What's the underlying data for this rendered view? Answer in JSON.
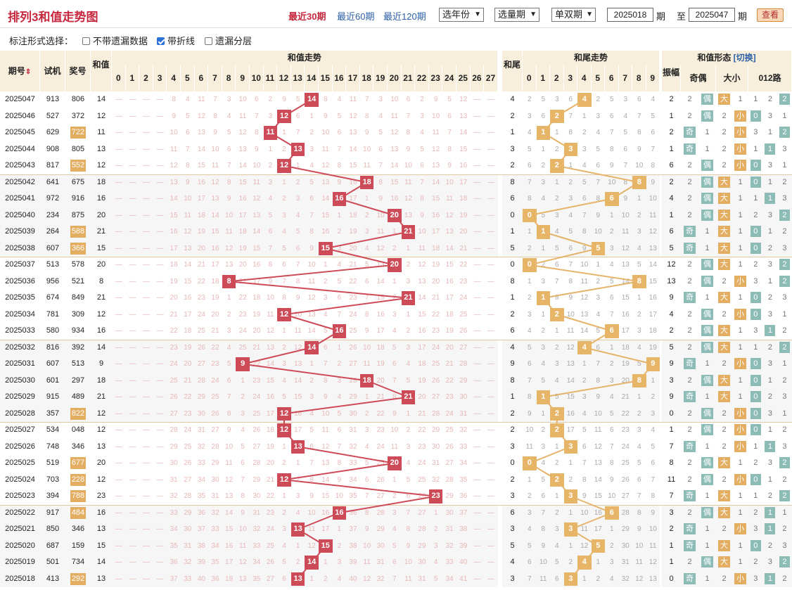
{
  "header": {
    "title": "排列3和值走势图",
    "links": [
      {
        "label": "最近30期",
        "active": true
      },
      {
        "label": "最近60期",
        "active": false
      },
      {
        "label": "最近120期",
        "active": false
      }
    ],
    "selects": [
      "选年份",
      "选量期",
      "单双期"
    ],
    "from": "2025018",
    "to": "2025047",
    "period_unit": "期",
    "to_label": "至",
    "query": "查看"
  },
  "options": {
    "label": "标注形式选择：",
    "items": [
      {
        "label": "不带遗漏数据",
        "checked": false
      },
      {
        "label": "带折线",
        "checked": true
      },
      {
        "label": "遗漏分层",
        "checked": false
      }
    ]
  },
  "columns": {
    "qihao": "期号",
    "sj": "试机",
    "jh": "奖号",
    "hz": "和值",
    "hz_group": "和值走势",
    "hw": "和尾",
    "hw_group": "和尾走势",
    "form_group": "和值形态",
    "switch": "[切换]",
    "zf": "振幅",
    "jo": "奇偶",
    "dx": "大小",
    "l012": "012路"
  },
  "colors": {
    "sum": "#cd4a57",
    "tail": "#e7b567",
    "tail_line": "#e5b36a",
    "odd": "#8dbcb7",
    "big": "#e3ae62",
    "low": "#ba4a55"
  },
  "labels": {
    "odd": "奇",
    "even": "偶",
    "big": "大",
    "small": "小"
  },
  "rows": [
    {
      "q": "2025047",
      "sj": "913",
      "jh": "806",
      "hz": 14,
      "hl": false
    },
    {
      "q": "2025046",
      "sj": "527",
      "jh": "372",
      "hz": 12,
      "hl": false
    },
    {
      "q": "2025045",
      "sj": "629",
      "jh": "722",
      "hz": 11,
      "hl": true
    },
    {
      "q": "2025044",
      "sj": "908",
      "jh": "805",
      "hz": 13,
      "hl": false
    },
    {
      "q": "2025043",
      "sj": "817",
      "jh": "552",
      "hz": 12,
      "hl": true
    },
    {
      "q": "2025042",
      "sj": "641",
      "jh": "675",
      "hz": 18,
      "hl": false
    },
    {
      "q": "2025041",
      "sj": "972",
      "jh": "916",
      "hz": 16,
      "hl": false
    },
    {
      "q": "2025040",
      "sj": "234",
      "jh": "875",
      "hz": 20,
      "hl": false
    },
    {
      "q": "2025039",
      "sj": "264",
      "jh": "588",
      "hz": 21,
      "hl": true
    },
    {
      "q": "2025038",
      "sj": "607",
      "jh": "366",
      "hz": 15,
      "hl": true
    },
    {
      "q": "2025037",
      "sj": "513",
      "jh": "578",
      "hz": 20,
      "hl": false
    },
    {
      "q": "2025036",
      "sj": "956",
      "jh": "521",
      "hz": 8,
      "hl": false
    },
    {
      "q": "2025035",
      "sj": "674",
      "jh": "849",
      "hz": 21,
      "hl": false
    },
    {
      "q": "2025034",
      "sj": "781",
      "jh": "309",
      "hz": 12,
      "hl": false
    },
    {
      "q": "2025033",
      "sj": "580",
      "jh": "934",
      "hz": 16,
      "hl": false
    },
    {
      "q": "2025032",
      "sj": "816",
      "jh": "392",
      "hz": 14,
      "hl": false
    },
    {
      "q": "2025031",
      "sj": "607",
      "jh": "513",
      "hz": 9,
      "hl": false
    },
    {
      "q": "2025030",
      "sj": "601",
      "jh": "297",
      "hz": 18,
      "hl": false
    },
    {
      "q": "2025029",
      "sj": "915",
      "jh": "489",
      "hz": 21,
      "hl": false
    },
    {
      "q": "2025028",
      "sj": "357",
      "jh": "822",
      "hz": 12,
      "hl": true
    },
    {
      "q": "2025027",
      "sj": "534",
      "jh": "048",
      "hz": 12,
      "hl": false
    },
    {
      "q": "2025026",
      "sj": "748",
      "jh": "346",
      "hz": 13,
      "hl": false
    },
    {
      "q": "2025025",
      "sj": "519",
      "jh": "677",
      "hz": 20,
      "hl": true
    },
    {
      "q": "2025024",
      "sj": "703",
      "jh": "228",
      "hz": 12,
      "hl": true
    },
    {
      "q": "2025023",
      "sj": "394",
      "jh": "788",
      "hz": 23,
      "hl": true
    },
    {
      "q": "2025022",
      "sj": "917",
      "jh": "484",
      "hz": 16,
      "hl": true
    },
    {
      "q": "2025021",
      "sj": "850",
      "jh": "346",
      "hz": 13,
      "hl": false
    },
    {
      "q": "2025020",
      "sj": "687",
      "jh": "159",
      "hz": 15,
      "hl": false
    },
    {
      "q": "2025019",
      "sj": "501",
      "jh": "734",
      "hz": 14,
      "hl": false
    },
    {
      "q": "2025018",
      "sj": "413",
      "jh": "292",
      "hz": 13,
      "hl": true
    }
  ]
}
